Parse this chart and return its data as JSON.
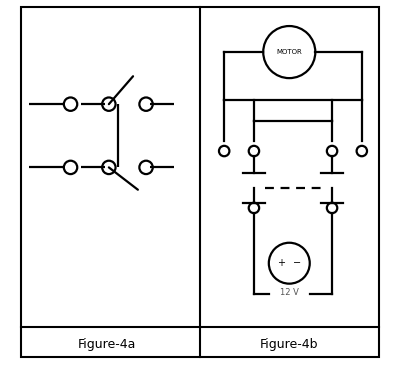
{
  "fig_width": 4.0,
  "fig_height": 3.72,
  "dpi": 100,
  "bg_color": "#ffffff",
  "line_color": "#000000",
  "line_width": 1.6,
  "label_4a": "Figure-4a",
  "label_4b": "Figure-4b",
  "motor_label": "MOTOR",
  "battery_label": "12 V",
  "circ_small_r": 0.012,
  "circ_open_r": 0.018
}
